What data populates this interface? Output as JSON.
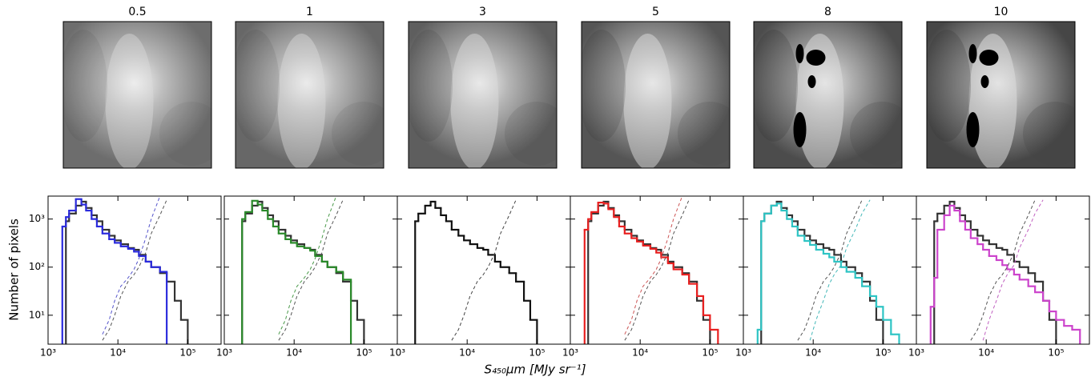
{
  "figure": {
    "xlabel": "S₄₅₀μm [MJy sr⁻¹]",
    "ylabel": "Number of pixels"
  },
  "chart_data": [
    {
      "type": "histogram",
      "title": "0.5",
      "xscale": "log",
      "yscale": "log",
      "xlim": [
        1000,
        300000
      ],
      "ylim": [
        2.5,
        3000
      ],
      "xticks": [
        {
          "value": 1000,
          "label": "10³"
        },
        {
          "value": 10000,
          "label": "10⁴"
        },
        {
          "value": 100000,
          "label": "10⁵"
        }
      ],
      "yticks": [
        {
          "value": 10,
          "label": "10¹"
        },
        {
          "value": 100,
          "label": "10²"
        },
        {
          "value": 1000,
          "label": "10³"
        }
      ],
      "bins": [
        1600,
        1800,
        2000,
        2500,
        3000,
        3500,
        4200,
        5000,
        6000,
        7500,
        9000,
        11000,
        14000,
        17000,
        20000,
        25000,
        30000,
        40000,
        50000,
        65000,
        80000,
        100000,
        130000,
        170000,
        220000
      ],
      "series": [
        {
          "color": "#333333",
          "dash": false,
          "values": [
            null,
            900,
            1300,
            1900,
            2300,
            1700,
            1200,
            900,
            600,
            450,
            360,
            300,
            250,
            230,
            180,
            130,
            100,
            75,
            50,
            20,
            8,
            null,
            null,
            null
          ]
        },
        {
          "color": "#2b2bdd",
          "dash": false,
          "values": [
            700,
            1100,
            1500,
            2600,
            2000,
            1500,
            1000,
            700,
            500,
            380,
            320,
            270,
            240,
            210,
            170,
            130,
            100,
            80,
            null,
            null,
            null,
            null,
            null,
            null
          ]
        },
        {
          "color": "#555555",
          "dash": true,
          "values": [
            null,
            null,
            null,
            null,
            null,
            null,
            null,
            null,
            3,
            5,
            10,
            25,
            50,
            70,
            100,
            200,
            500,
            1200,
            2500,
            null,
            null,
            null,
            null,
            null
          ]
        },
        {
          "color": "#5555cc",
          "dash": true,
          "values": [
            null,
            null,
            null,
            null,
            null,
            null,
            null,
            null,
            4,
            8,
            20,
            40,
            60,
            90,
            150,
            400,
            1000,
            3000,
            null,
            null,
            null,
            null,
            null,
            null
          ]
        }
      ]
    },
    {
      "type": "histogram",
      "title": "1",
      "xscale": "log",
      "yscale": "log",
      "xlim": [
        1000,
        300000
      ],
      "ylim": [
        2.5,
        3000
      ],
      "xticks": [
        {
          "value": 1000,
          "label": "10³"
        },
        {
          "value": 10000,
          "label": "10⁴"
        },
        {
          "value": 100000,
          "label": "10⁵"
        }
      ],
      "yticks": [
        10,
        100,
        1000
      ],
      "bins": [
        1600,
        1800,
        2000,
        2500,
        3000,
        3500,
        4200,
        5000,
        6000,
        7500,
        9000,
        11000,
        14000,
        17000,
        20000,
        25000,
        30000,
        40000,
        50000,
        65000,
        80000,
        100000,
        130000,
        170000,
        220000
      ],
      "series": [
        {
          "color": "#333333",
          "dash": false,
          "values": [
            null,
            900,
            1300,
            1900,
            2300,
            1700,
            1200,
            900,
            600,
            450,
            360,
            300,
            250,
            230,
            180,
            130,
            100,
            75,
            50,
            20,
            8,
            null,
            null,
            null
          ]
        },
        {
          "color": "#2a8a2a",
          "dash": false,
          "values": [
            null,
            1000,
            1400,
            2400,
            2000,
            1500,
            1000,
            700,
            500,
            380,
            320,
            270,
            250,
            220,
            170,
            130,
            100,
            80,
            55,
            null,
            null,
            null,
            null,
            null
          ]
        },
        {
          "color": "#555555",
          "dash": true,
          "values": [
            null,
            null,
            null,
            null,
            null,
            null,
            null,
            null,
            3,
            5,
            10,
            25,
            50,
            70,
            100,
            200,
            500,
            1200,
            2500,
            null,
            null,
            null,
            null,
            null
          ]
        },
        {
          "color": "#4a9a4a",
          "dash": true,
          "values": [
            null,
            null,
            null,
            null,
            null,
            null,
            null,
            null,
            4,
            8,
            20,
            40,
            60,
            90,
            150,
            400,
            1000,
            3000,
            null,
            null,
            null,
            null,
            null,
            null
          ]
        }
      ]
    },
    {
      "type": "histogram",
      "title": "3",
      "xscale": "log",
      "yscale": "log",
      "xlim": [
        1000,
        300000
      ],
      "ylim": [
        2.5,
        3000
      ],
      "xticks": [
        {
          "value": 1000,
          "label": "10³"
        },
        {
          "value": 10000,
          "label": "10⁴"
        },
        {
          "value": 100000,
          "label": "10⁵"
        }
      ],
      "yticks": [
        10,
        100,
        1000
      ],
      "bins": [
        1600,
        1800,
        2000,
        2500,
        3000,
        3500,
        4200,
        5000,
        6000,
        7500,
        9000,
        11000,
        14000,
        17000,
        20000,
        25000,
        30000,
        40000,
        50000,
        65000,
        80000,
        100000,
        130000,
        170000,
        220000
      ],
      "series": [
        {
          "color": "#111111",
          "dash": false,
          "values": [
            null,
            900,
            1300,
            1900,
            2300,
            1700,
            1200,
            900,
            600,
            450,
            360,
            300,
            250,
            230,
            180,
            130,
            100,
            75,
            50,
            20,
            8,
            null,
            null,
            null
          ]
        },
        {
          "color": "#444444",
          "dash": true,
          "values": [
            null,
            null,
            null,
            null,
            null,
            null,
            null,
            null,
            3,
            5,
            10,
            25,
            50,
            70,
            100,
            200,
            500,
            1200,
            2500,
            null,
            null,
            null,
            null,
            null
          ]
        }
      ]
    },
    {
      "type": "histogram",
      "title": "5",
      "xscale": "log",
      "yscale": "log",
      "xlim": [
        1000,
        300000
      ],
      "ylim": [
        2.5,
        3000
      ],
      "xticks": [
        {
          "value": 1000,
          "label": "10³"
        },
        {
          "value": 10000,
          "label": "10⁴"
        },
        {
          "value": 100000,
          "label": "10⁵"
        }
      ],
      "yticks": [
        10,
        100,
        1000
      ],
      "bins": [
        1600,
        1800,
        2000,
        2500,
        3000,
        3500,
        4200,
        5000,
        6000,
        7500,
        9000,
        11000,
        14000,
        17000,
        20000,
        25000,
        30000,
        40000,
        50000,
        65000,
        80000,
        100000,
        130000,
        170000,
        220000
      ],
      "series": [
        {
          "color": "#333333",
          "dash": false,
          "values": [
            null,
            900,
            1300,
            1900,
            2300,
            1700,
            1200,
            900,
            600,
            450,
            360,
            300,
            250,
            230,
            180,
            130,
            100,
            75,
            50,
            20,
            8,
            null,
            null,
            null
          ]
        },
        {
          "color": "#e82020",
          "dash": false,
          "values": [
            600,
            1000,
            1400,
            2200,
            2100,
            1600,
            1100,
            700,
            500,
            400,
            340,
            280,
            240,
            200,
            160,
            120,
            90,
            70,
            45,
            25,
            10,
            5,
            null,
            null
          ]
        },
        {
          "color": "#555555",
          "dash": true,
          "values": [
            null,
            null,
            null,
            null,
            null,
            null,
            null,
            null,
            3,
            5,
            10,
            25,
            50,
            70,
            100,
            200,
            500,
            1200,
            2500,
            null,
            null,
            null,
            null,
            null
          ]
        },
        {
          "color": "#cc5555",
          "dash": true,
          "values": [
            null,
            null,
            null,
            null,
            null,
            null,
            null,
            null,
            4,
            8,
            20,
            40,
            60,
            90,
            150,
            400,
            1000,
            3000,
            null,
            null,
            null,
            null,
            null,
            null
          ]
        }
      ]
    },
    {
      "type": "histogram",
      "title": "8",
      "xscale": "log",
      "yscale": "log",
      "xlim": [
        1000,
        300000
      ],
      "ylim": [
        2.5,
        3000
      ],
      "xticks": [
        {
          "value": 1000,
          "label": "10³"
        },
        {
          "value": 10000,
          "label": "10⁴"
        },
        {
          "value": 100000,
          "label": "10⁵"
        }
      ],
      "yticks": [
        10,
        100,
        1000
      ],
      "bins": [
        1600,
        1800,
        2000,
        2500,
        3000,
        3500,
        4200,
        5000,
        6000,
        7500,
        9000,
        11000,
        14000,
        17000,
        20000,
        25000,
        30000,
        40000,
        50000,
        65000,
        80000,
        100000,
        130000,
        170000,
        220000
      ],
      "series": [
        {
          "color": "#333333",
          "dash": false,
          "values": [
            null,
            900,
            1300,
            1900,
            2300,
            1700,
            1200,
            900,
            600,
            450,
            360,
            300,
            250,
            230,
            180,
            130,
            100,
            75,
            50,
            20,
            8,
            null,
            null,
            null
          ]
        },
        {
          "color": "#2ec4c4",
          "dash": false,
          "values": [
            5,
            900,
            1300,
            1900,
            2100,
            1500,
            1000,
            700,
            450,
            350,
            290,
            230,
            190,
            160,
            130,
            100,
            80,
            60,
            40,
            25,
            15,
            8,
            4,
            null
          ]
        },
        {
          "color": "#555555",
          "dash": true,
          "values": [
            null,
            null,
            null,
            null,
            null,
            null,
            null,
            null,
            3,
            5,
            10,
            25,
            50,
            70,
            100,
            200,
            500,
            1200,
            2500,
            null,
            null,
            null,
            null,
            null
          ]
        },
        {
          "color": "#44b8b8",
          "dash": true,
          "values": [
            null,
            null,
            null,
            null,
            null,
            null,
            null,
            null,
            null,
            null,
            3,
            8,
            20,
            45,
            70,
            110,
            250,
            600,
            1300,
            2500,
            null,
            null,
            null,
            null
          ]
        }
      ]
    },
    {
      "type": "histogram",
      "title": "10",
      "xscale": "log",
      "yscale": "log",
      "xlim": [
        1000,
        300000
      ],
      "ylim": [
        2.5,
        3000
      ],
      "xticks": [
        {
          "value": 1000,
          "label": "10³"
        },
        {
          "value": 10000,
          "label": "10⁴"
        },
        {
          "value": 100000,
          "label": "10⁵"
        }
      ],
      "yticks": [
        10,
        100,
        1000
      ],
      "bins": [
        1600,
        1800,
        2000,
        2500,
        3000,
        3500,
        4200,
        5000,
        6000,
        7500,
        9000,
        11000,
        14000,
        17000,
        20000,
        25000,
        30000,
        40000,
        50000,
        65000,
        80000,
        100000,
        130000,
        170000,
        220000
      ],
      "series": [
        {
          "color": "#333333",
          "dash": false,
          "values": [
            null,
            900,
            1300,
            1900,
            2300,
            1700,
            1200,
            900,
            600,
            450,
            360,
            300,
            250,
            230,
            180,
            130,
            100,
            75,
            50,
            20,
            8,
            null,
            null,
            null
          ]
        },
        {
          "color": "#cc44cc",
          "dash": false,
          "values": [
            15,
            60,
            600,
            1200,
            1900,
            1500,
            900,
            600,
            400,
            300,
            230,
            170,
            140,
            110,
            90,
            70,
            55,
            40,
            30,
            20,
            12,
            8,
            6,
            5
          ]
        },
        {
          "color": "#555555",
          "dash": true,
          "values": [
            null,
            null,
            null,
            null,
            null,
            null,
            null,
            null,
            3,
            5,
            10,
            25,
            50,
            70,
            100,
            200,
            500,
            1200,
            2500,
            null,
            null,
            null,
            null,
            null
          ]
        },
        {
          "color": "#c060c0",
          "dash": true,
          "values": [
            null,
            null,
            null,
            null,
            null,
            null,
            null,
            null,
            null,
            null,
            3,
            8,
            20,
            45,
            70,
            110,
            250,
            600,
            1300,
            2500,
            null,
            null,
            null,
            null
          ]
        }
      ]
    }
  ]
}
